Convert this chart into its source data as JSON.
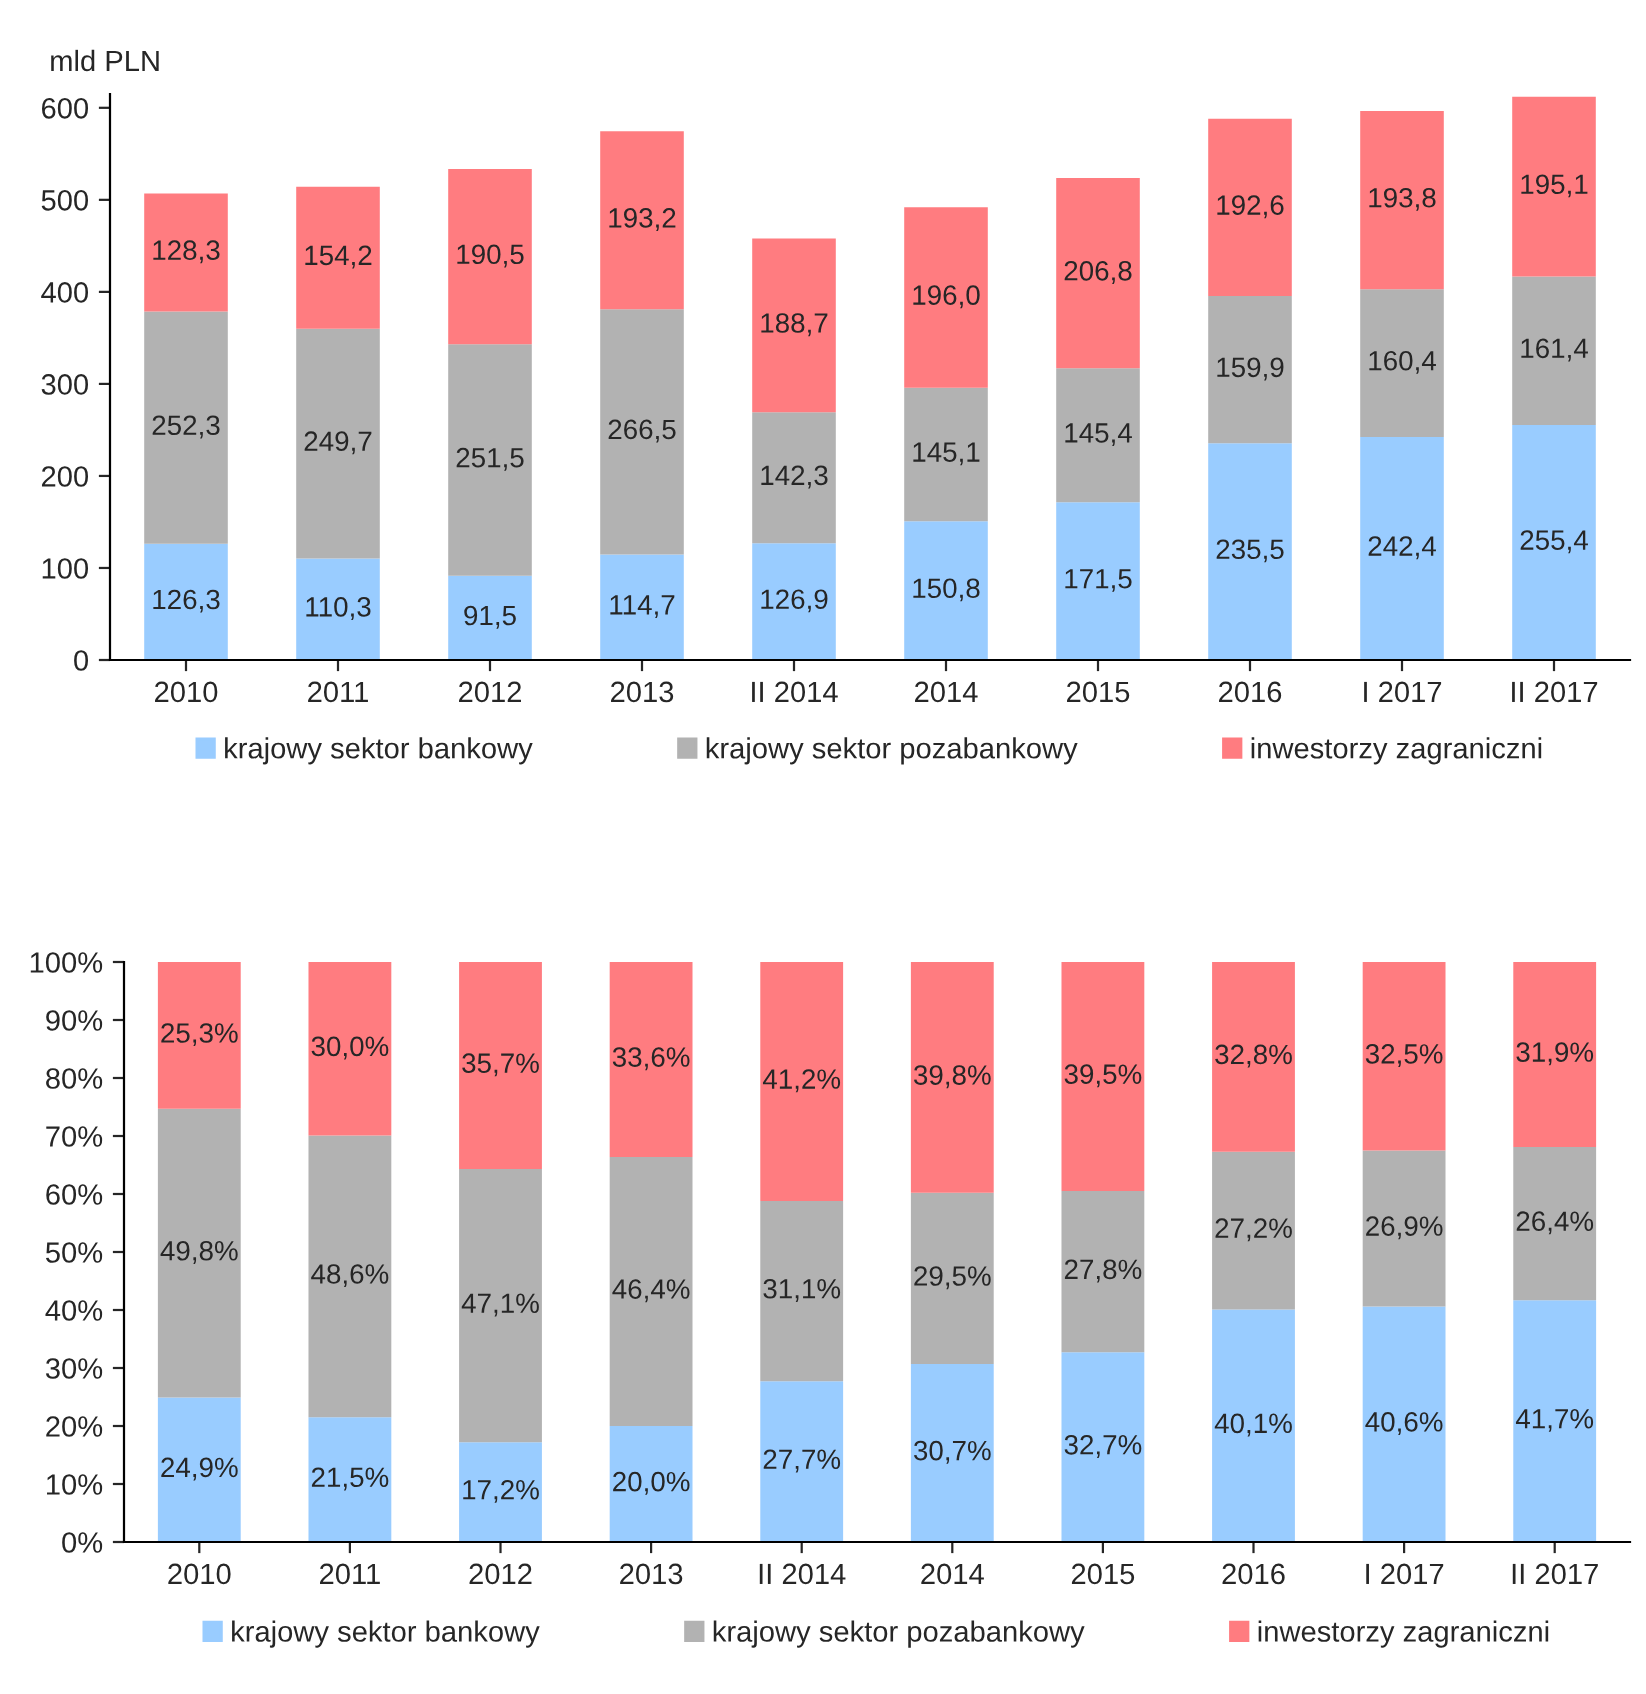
{
  "chart_data": [
    {
      "type": "bar",
      "stacked": true,
      "ylabel": "mld PLN",
      "categories": [
        "2010",
        "2011",
        "2012",
        "2013",
        "II 2014",
        "2014",
        "2015",
        "2016",
        "I 2017",
        "II 2017"
      ],
      "series": [
        {
          "name": "krajowy sektor bankowy",
          "color": "#99ccff",
          "values": [
            126.3,
            110.3,
            91.5,
            114.7,
            126.9,
            150.8,
            171.5,
            235.5,
            242.4,
            255.4
          ],
          "value_labels": [
            "126,3",
            "110,3",
            "91,5",
            "114,7",
            "126,9",
            "150,8",
            "171,5",
            "235,5",
            "242,4",
            "255,4"
          ]
        },
        {
          "name": "krajowy sektor pozabankowy",
          "color": "#b2b2b2",
          "values": [
            252.3,
            249.7,
            251.5,
            266.5,
            142.3,
            145.1,
            145.4,
            159.9,
            160.4,
            161.4
          ],
          "value_labels": [
            "252,3",
            "249,7",
            "251,5",
            "266,5",
            "142,3",
            "145,1",
            "145,4",
            "159,9",
            "160,4",
            "161,4"
          ]
        },
        {
          "name": "inwestorzy zagraniczni",
          "color": "#ff7c80",
          "values": [
            128.3,
            154.2,
            190.5,
            193.2,
            188.7,
            196.0,
            206.8,
            192.6,
            193.8,
            195.1
          ],
          "value_labels": [
            "128,3",
            "154,2",
            "190,5",
            "193,2",
            "188,7",
            "196,0",
            "206,8",
            "192,6",
            "193,8",
            "195,1"
          ]
        }
      ],
      "ylim": [
        0,
        615
      ],
      "yticks": [
        0,
        100,
        200,
        300,
        400,
        500,
        600
      ],
      "grid": false,
      "legend": "bottom"
    },
    {
      "type": "bar",
      "stacked": true,
      "categories": [
        "2010",
        "2011",
        "2012",
        "2013",
        "II 2014",
        "2014",
        "2015",
        "2016",
        "I 2017",
        "II 2017"
      ],
      "series": [
        {
          "name": "krajowy sektor bankowy",
          "color": "#99ccff",
          "values": [
            24.9,
            21.5,
            17.2,
            20.0,
            27.7,
            30.7,
            32.7,
            40.1,
            40.6,
            41.7
          ],
          "value_labels": [
            "24,9%",
            "21,5%",
            "17,2%",
            "20,0%",
            "27,7%",
            "30,7%",
            "32,7%",
            "40,1%",
            "40,6%",
            "41,7%"
          ]
        },
        {
          "name": "krajowy sektor pozabankowy",
          "color": "#b2b2b2",
          "values": [
            49.8,
            48.6,
            47.1,
            46.4,
            31.1,
            29.5,
            27.8,
            27.2,
            26.9,
            26.4
          ],
          "value_labels": [
            "49,8%",
            "48,6%",
            "47,1%",
            "46,4%",
            "31,1%",
            "29,5%",
            "27,8%",
            "27,2%",
            "26,9%",
            "26,4%"
          ]
        },
        {
          "name": "inwestorzy zagraniczni",
          "color": "#ff7c80",
          "values": [
            25.3,
            30.0,
            35.7,
            33.6,
            41.2,
            39.8,
            39.5,
            32.8,
            32.5,
            31.9
          ],
          "value_labels": [
            "25,3%",
            "30,0%",
            "35,7%",
            "33,6%",
            "41,2%",
            "39,8%",
            "39,5%",
            "32,8%",
            "32,5%",
            "31,9%"
          ]
        }
      ],
      "ylim": [
        0,
        100
      ],
      "yticks": [
        {
          "value": 0,
          "label": "0%"
        },
        {
          "value": 10,
          "label": "10%"
        },
        {
          "value": 20,
          "label": "20%"
        },
        {
          "value": 30,
          "label": "30%"
        },
        {
          "value": 40,
          "label": "40%"
        },
        {
          "value": 50,
          "label": "50%"
        },
        {
          "value": 60,
          "label": "60%"
        },
        {
          "value": 70,
          "label": "70%"
        },
        {
          "value": 80,
          "label": "80%"
        },
        {
          "value": 90,
          "label": "90%"
        },
        {
          "value": 100,
          "label": "100%"
        }
      ],
      "grid": false,
      "legend": "bottom"
    }
  ]
}
